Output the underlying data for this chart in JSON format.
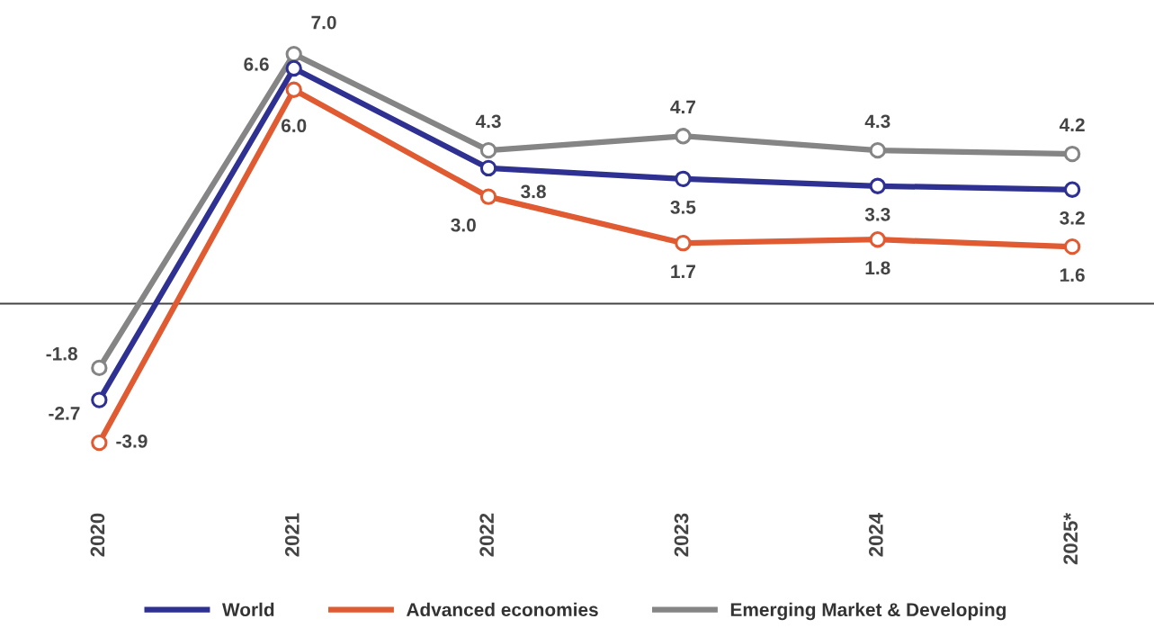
{
  "chart_data": {
    "type": "line",
    "categories": [
      "2020",
      "2021",
      "2022",
      "2023",
      "2024",
      "2025*"
    ],
    "series": [
      {
        "name": "World",
        "color": "#2e3192",
        "values": [
          -2.7,
          6.6,
          3.8,
          3.5,
          3.3,
          3.2
        ],
        "value_labels": [
          "-2.7",
          "6.6",
          "3.8",
          "3.5",
          "3.3",
          "3.2"
        ]
      },
      {
        "name": "Advanced economies",
        "color": "#e05a32",
        "values": [
          -3.9,
          6.0,
          3.0,
          1.7,
          1.8,
          1.6
        ],
        "value_labels": [
          "-3.9",
          "6.0",
          "3.0",
          "1.7",
          "1.8",
          "1.6"
        ]
      },
      {
        "name": "Emerging Market & Developing",
        "color": "#858585",
        "values": [
          -1.8,
          7.0,
          4.3,
          4.7,
          4.3,
          4.2
        ],
        "value_labels": [
          "-1.8",
          "7.0",
          "4.3",
          "4.7",
          "4.3",
          "4.2"
        ]
      }
    ],
    "ref_lines": [
      {
        "axis": "y",
        "value": 0,
        "color": "#444444"
      }
    ],
    "marker": "circle",
    "line_style": "solid",
    "grid": false,
    "legend": "bottom",
    "tick_labels": "x"
  }
}
